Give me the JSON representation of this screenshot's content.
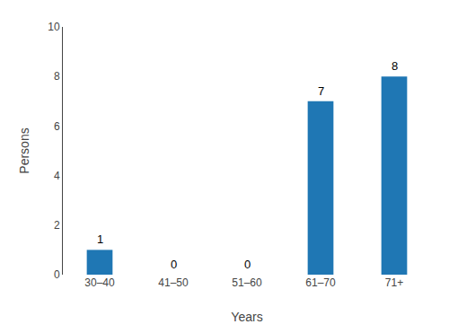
{
  "chart_data": {
    "type": "bar",
    "categories": [
      "30–40",
      "41–50",
      "51–60",
      "61–70",
      "71+"
    ],
    "values": [
      1,
      0,
      0,
      7,
      8
    ],
    "xlabel": "Years",
    "ylabel": "Persons",
    "ylim": [
      0,
      10
    ],
    "yticks": [
      0,
      2,
      4,
      6,
      8,
      10
    ],
    "grid": false,
    "data_labels": true
  }
}
